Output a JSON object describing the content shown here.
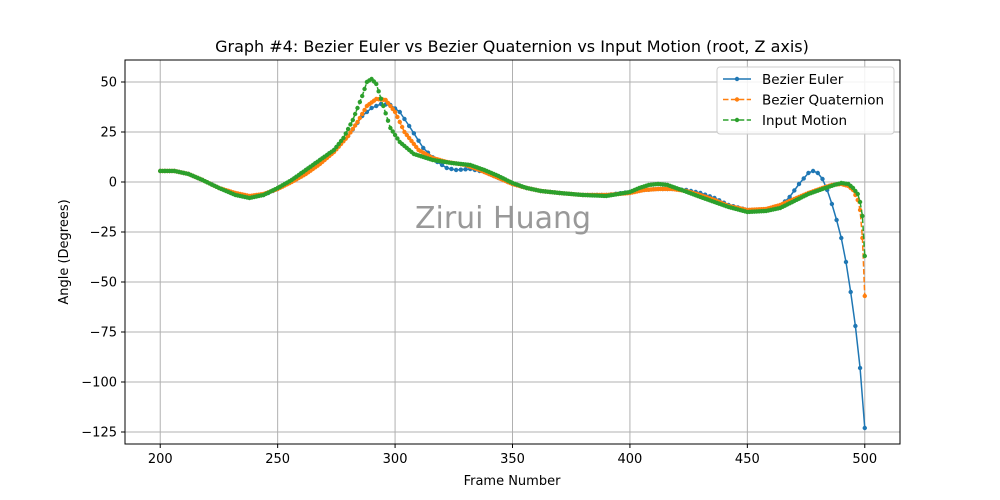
{
  "chart_data": {
    "type": "line",
    "title": "Graph #4: Bezier Euler vs Bezier Quaternion vs Input Motion (root, Z axis)",
    "xlabel": "Frame Number",
    "ylabel": "Angle (Degrees)",
    "xlim": [
      185,
      515
    ],
    "ylim": [
      -131,
      61
    ],
    "xticks": [
      200,
      250,
      300,
      350,
      400,
      450,
      500
    ],
    "yticks": [
      50,
      25,
      0,
      -25,
      -50,
      -75,
      -100,
      -125
    ],
    "xtick_labels": [
      "200",
      "250",
      "300",
      "350",
      "400",
      "450",
      "500"
    ],
    "ytick_labels": [
      "50",
      "25",
      "0",
      "−25",
      "−50",
      "−75",
      "−100",
      "−125"
    ],
    "grid": true,
    "legend_position": "top-right",
    "watermark": "Zirui Huang",
    "series": [
      {
        "name": "Bezier Euler",
        "color": "#1f77b4",
        "line_style": "solid",
        "step": 2,
        "points": [
          [
            200,
            5.5
          ],
          [
            206,
            5.5
          ],
          [
            212,
            4
          ],
          [
            218,
            1
          ],
          [
            225,
            -3
          ],
          [
            232,
            -6
          ],
          [
            238,
            -7.5
          ],
          [
            244,
            -6.5
          ],
          [
            250,
            -3.5
          ],
          [
            256,
            1
          ],
          [
            262,
            6
          ],
          [
            268,
            11
          ],
          [
            274,
            16
          ],
          [
            280,
            23
          ],
          [
            286,
            33
          ],
          [
            290,
            37
          ],
          [
            294,
            39
          ],
          [
            298,
            38.5
          ],
          [
            302,
            35
          ],
          [
            306,
            28
          ],
          [
            312,
            17
          ],
          [
            318,
            10
          ],
          [
            322,
            7
          ],
          [
            326,
            6
          ],
          [
            332,
            6.5
          ],
          [
            338,
            5
          ],
          [
            344,
            2
          ],
          [
            350,
            -1
          ],
          [
            356,
            -3
          ],
          [
            362,
            -4.5
          ],
          [
            370,
            -5.5
          ],
          [
            380,
            -6.5
          ],
          [
            390,
            -6.5
          ],
          [
            400,
            -5
          ],
          [
            406,
            -4
          ],
          [
            412,
            -3.5
          ],
          [
            418,
            -3.5
          ],
          [
            424,
            -4
          ],
          [
            430,
            -5.5
          ],
          [
            436,
            -8
          ],
          [
            442,
            -11.5
          ],
          [
            450,
            -14
          ],
          [
            458,
            -14
          ],
          [
            464,
            -12
          ],
          [
            468,
            -7.5
          ],
          [
            472,
            -1
          ],
          [
            476,
            4.5
          ],
          [
            478,
            5.5
          ],
          [
            480,
            4.5
          ],
          [
            482,
            1.5
          ],
          [
            484,
            -4
          ],
          [
            486,
            -11
          ],
          [
            488,
            -19
          ],
          [
            490,
            -28
          ],
          [
            492,
            -40
          ],
          [
            494,
            -55
          ],
          [
            496,
            -72
          ],
          [
            498,
            -93
          ],
          [
            500,
            -123
          ]
        ]
      },
      {
        "name": "Bezier Quaternion",
        "color": "#ff7f0e",
        "line_style": "dashed",
        "step": 1,
        "points": [
          [
            200,
            5.5
          ],
          [
            206,
            5.5
          ],
          [
            212,
            4
          ],
          [
            218,
            1
          ],
          [
            225,
            -3
          ],
          [
            232,
            -5.5
          ],
          [
            238,
            -7
          ],
          [
            244,
            -6
          ],
          [
            250,
            -3.5
          ],
          [
            256,
            0
          ],
          [
            262,
            4
          ],
          [
            268,
            9
          ],
          [
            274,
            15
          ],
          [
            280,
            23
          ],
          [
            284,
            30
          ],
          [
            288,
            38
          ],
          [
            292,
            41.5
          ],
          [
            296,
            41
          ],
          [
            300,
            35
          ],
          [
            304,
            25
          ],
          [
            310,
            16
          ],
          [
            316,
            12
          ],
          [
            322,
            10
          ],
          [
            330,
            8.5
          ],
          [
            336,
            6
          ],
          [
            344,
            2
          ],
          [
            350,
            -1
          ],
          [
            356,
            -3
          ],
          [
            362,
            -4.5
          ],
          [
            370,
            -5.5
          ],
          [
            380,
            -6.5
          ],
          [
            390,
            -6.5
          ],
          [
            400,
            -5.5
          ],
          [
            406,
            -4
          ],
          [
            412,
            -3.5
          ],
          [
            418,
            -3.5
          ],
          [
            424,
            -4.5
          ],
          [
            430,
            -6.5
          ],
          [
            436,
            -9
          ],
          [
            442,
            -12
          ],
          [
            450,
            -14
          ],
          [
            458,
            -13.5
          ],
          [
            464,
            -11.5
          ],
          [
            470,
            -8.5
          ],
          [
            476,
            -5.5
          ],
          [
            482,
            -3
          ],
          [
            486,
            -1.5
          ],
          [
            490,
            -1
          ],
          [
            493,
            -2
          ],
          [
            495,
            -4
          ],
          [
            497,
            -9
          ],
          [
            498,
            -14
          ],
          [
            499,
            -28
          ],
          [
            500,
            -57
          ]
        ]
      },
      {
        "name": "Input Motion",
        "color": "#2ca02c",
        "line_style": "dashed",
        "step": 1,
        "points": [
          [
            200,
            5.5
          ],
          [
            206,
            5.5
          ],
          [
            212,
            4
          ],
          [
            218,
            1
          ],
          [
            225,
            -3
          ],
          [
            232,
            -6.5
          ],
          [
            238,
            -8
          ],
          [
            244,
            -6.5
          ],
          [
            250,
            -3
          ],
          [
            256,
            1
          ],
          [
            262,
            6
          ],
          [
            268,
            11
          ],
          [
            274,
            16
          ],
          [
            278,
            22
          ],
          [
            282,
            31
          ],
          [
            286,
            43
          ],
          [
            288,
            50
          ],
          [
            290,
            51.5
          ],
          [
            292,
            49
          ],
          [
            295,
            38
          ],
          [
            298,
            27
          ],
          [
            302,
            20
          ],
          [
            308,
            14
          ],
          [
            316,
            11
          ],
          [
            324,
            9.5
          ],
          [
            332,
            8.5
          ],
          [
            338,
            6
          ],
          [
            344,
            3
          ],
          [
            350,
            -0.5
          ],
          [
            356,
            -3
          ],
          [
            362,
            -4.5
          ],
          [
            370,
            -5.5
          ],
          [
            380,
            -6.5
          ],
          [
            390,
            -7
          ],
          [
            400,
            -5
          ],
          [
            404,
            -3
          ],
          [
            408,
            -1.5
          ],
          [
            412,
            -1
          ],
          [
            416,
            -1.5
          ],
          [
            422,
            -4
          ],
          [
            430,
            -7.5
          ],
          [
            436,
            -10
          ],
          [
            442,
            -12.5
          ],
          [
            450,
            -15
          ],
          [
            458,
            -14.5
          ],
          [
            464,
            -13
          ],
          [
            470,
            -9.5
          ],
          [
            476,
            -6
          ],
          [
            482,
            -3.5
          ],
          [
            487,
            -1.5
          ],
          [
            490,
            -0.5
          ],
          [
            493,
            -1
          ],
          [
            495,
            -3
          ],
          [
            497,
            -6
          ],
          [
            498,
            -10
          ],
          [
            499,
            -17
          ],
          [
            500,
            -37
          ]
        ]
      }
    ]
  }
}
